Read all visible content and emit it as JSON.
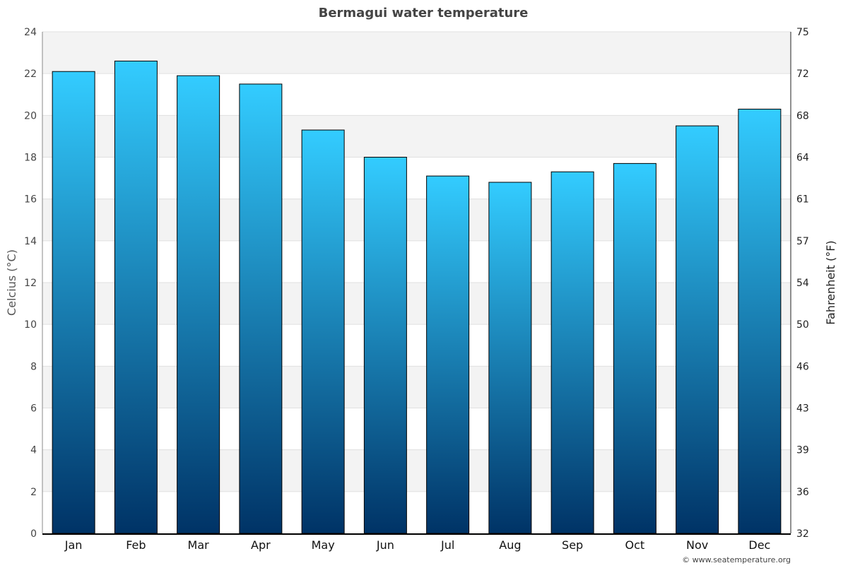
{
  "chart_data": {
    "type": "bar",
    "title": "Bermagui water temperature",
    "categories": [
      "Jan",
      "Feb",
      "Mar",
      "Apr",
      "May",
      "Jun",
      "Jul",
      "Aug",
      "Sep",
      "Oct",
      "Nov",
      "Dec"
    ],
    "values": [
      22.1,
      22.6,
      21.9,
      21.5,
      19.3,
      18.0,
      17.1,
      16.8,
      17.3,
      17.7,
      19.5,
      20.3
    ],
    "ylabel": "Celcius (°C)",
    "ylabel_right": "Fahrenheit (°F)",
    "ylim": [
      0,
      24
    ],
    "yticks": [
      0,
      2,
      4,
      6,
      8,
      10,
      12,
      14,
      16,
      18,
      20,
      22,
      24
    ],
    "yticks_right": [
      "32",
      "36",
      "39",
      "43",
      "46",
      "50",
      "54",
      "57",
      "61",
      "64",
      "68",
      "72",
      "75"
    ],
    "grid": true,
    "bar_color_top": "#33ccff",
    "bar_color_bottom": "#003366",
    "band_color": "#f3f3f3"
  },
  "footer": {
    "credit": "© www.seatemperature.org"
  }
}
